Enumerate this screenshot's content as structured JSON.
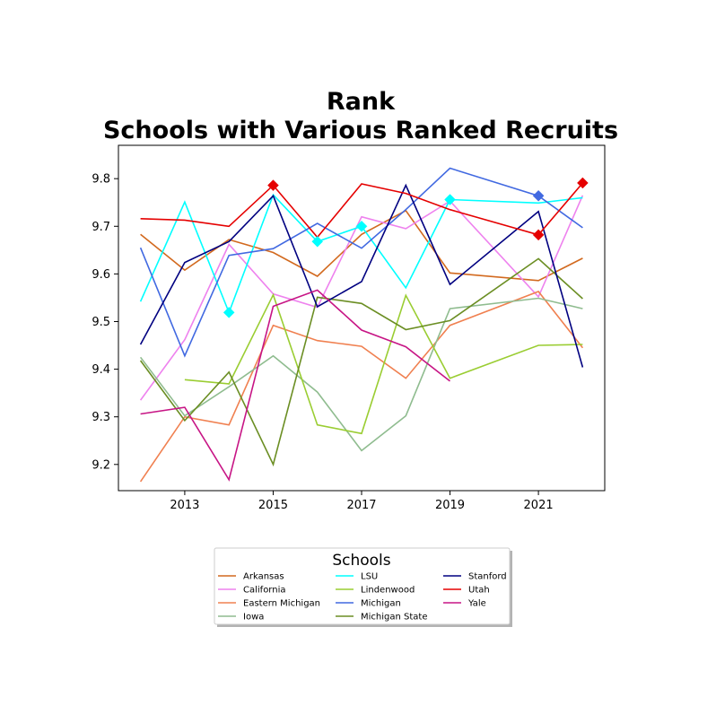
{
  "chart_data": {
    "type": "line",
    "title_lines": [
      "Rank",
      "Schools with Various Ranked Recruits"
    ],
    "xlabel": "",
    "ylabel": "",
    "xlim": [
      2011.5,
      2022.5
    ],
    "ylim": [
      9.145,
      9.87
    ],
    "xticks": [
      2013,
      2015,
      2017,
      2019,
      2021
    ],
    "yticks": [
      9.2,
      9.3,
      9.4,
      9.5,
      9.6,
      9.7,
      9.8
    ],
    "ytick_labels": [
      "9.2",
      "9.3",
      "9.4",
      "9.5",
      "9.6",
      "9.7",
      "9.8"
    ],
    "grid": false,
    "legend": {
      "title": "Schools",
      "placement": "bottom-center",
      "columns": 3
    },
    "series": [
      {
        "name": "Arkansas",
        "color": "#D2691E",
        "points": [
          [
            2012,
            9.683
          ],
          [
            2013,
            9.608
          ],
          [
            2014,
            9.672
          ],
          [
            2015,
            9.645
          ],
          [
            2016,
            9.595
          ],
          [
            2017,
            9.683
          ],
          [
            2018,
            9.733
          ],
          [
            2019,
            9.602
          ],
          [
            2021,
            9.586
          ],
          [
            2022,
            9.633
          ]
        ],
        "markers": []
      },
      {
        "name": "California",
        "color": "#EE82EE",
        "points": [
          [
            2012,
            9.335
          ],
          [
            2013,
            9.462
          ],
          [
            2014,
            9.662
          ],
          [
            2015,
            9.558
          ],
          [
            2016,
            9.53
          ],
          [
            2017,
            9.72
          ],
          [
            2018,
            9.695
          ],
          [
            2019,
            9.753
          ],
          [
            2021,
            9.552
          ],
          [
            2022,
            9.765
          ]
        ],
        "markers": []
      },
      {
        "name": "Eastern Michigan",
        "color": "#F08050",
        "points": [
          [
            2012,
            9.164
          ],
          [
            2013,
            9.3
          ],
          [
            2014,
            9.283
          ],
          [
            2015,
            9.492
          ],
          [
            2016,
            9.46
          ],
          [
            2017,
            9.448
          ],
          [
            2018,
            9.381
          ],
          [
            2019,
            9.492
          ],
          [
            2021,
            9.563
          ],
          [
            2022,
            9.445
          ]
        ],
        "markers": []
      },
      {
        "name": "Iowa",
        "color": "#8FBC8F",
        "points": [
          [
            2012,
            9.425
          ],
          [
            2013,
            9.302
          ],
          [
            2014,
            9.363
          ],
          [
            2015,
            9.428
          ],
          [
            2016,
            9.352
          ],
          [
            2017,
            9.229
          ],
          [
            2018,
            9.302
          ],
          [
            2019,
            9.527
          ],
          [
            2021,
            9.549
          ],
          [
            2022,
            9.527
          ]
        ],
        "markers": []
      },
      {
        "name": "LSU",
        "color": "#00FFFF",
        "points": [
          [
            2012,
            9.542
          ],
          [
            2013,
            9.751
          ],
          [
            2014,
            9.519
          ],
          [
            2015,
            9.766
          ],
          [
            2016,
            9.668
          ],
          [
            2017,
            9.7
          ],
          [
            2018,
            9.571
          ],
          [
            2019,
            9.756
          ],
          [
            2021,
            9.749
          ],
          [
            2022,
            9.76
          ]
        ],
        "markers": [
          2014,
          2016,
          2017,
          2019
        ]
      },
      {
        "name": "Lindenwood",
        "color": "#9ACD32",
        "points": [
          [
            2013,
            9.378
          ],
          [
            2014,
            9.369
          ],
          [
            2015,
            9.556
          ],
          [
            2016,
            9.283
          ],
          [
            2017,
            9.265
          ],
          [
            2018,
            9.555
          ],
          [
            2019,
            9.381
          ],
          [
            2021,
            9.45
          ],
          [
            2022,
            9.452
          ]
        ],
        "markers": []
      },
      {
        "name": "Michigan",
        "color": "#4169E1",
        "points": [
          [
            2012,
            9.655
          ],
          [
            2013,
            9.428
          ],
          [
            2014,
            9.639
          ],
          [
            2015,
            9.653
          ],
          [
            2016,
            9.706
          ],
          [
            2017,
            9.654
          ],
          [
            2018,
            9.735
          ],
          [
            2019,
            9.822
          ],
          [
            2021,
            9.764
          ],
          [
            2022,
            9.697
          ]
        ],
        "markers": [
          2021
        ]
      },
      {
        "name": "Michigan State",
        "color": "#6B8E23",
        "points": [
          [
            2012,
            9.418
          ],
          [
            2013,
            9.292
          ],
          [
            2014,
            9.394
          ],
          [
            2015,
            9.2
          ],
          [
            2016,
            9.551
          ],
          [
            2017,
            9.538
          ],
          [
            2018,
            9.483
          ],
          [
            2019,
            9.502
          ],
          [
            2021,
            9.632
          ],
          [
            2022,
            9.548
          ]
        ],
        "markers": []
      },
      {
        "name": "Stanford",
        "color": "#000080",
        "points": [
          [
            2012,
            9.452
          ],
          [
            2013,
            9.624
          ],
          [
            2014,
            9.668
          ],
          [
            2015,
            9.764
          ],
          [
            2016,
            9.531
          ],
          [
            2017,
            9.584
          ],
          [
            2018,
            9.786
          ],
          [
            2019,
            9.578
          ],
          [
            2021,
            9.731
          ],
          [
            2022,
            9.404
          ]
        ],
        "markers": []
      },
      {
        "name": "Utah",
        "color": "#E50000",
        "points": [
          [
            2012,
            9.716
          ],
          [
            2013,
            9.713
          ],
          [
            2014,
            9.7
          ],
          [
            2015,
            9.786
          ],
          [
            2016,
            9.677
          ],
          [
            2017,
            9.789
          ],
          [
            2018,
            9.769
          ],
          [
            2019,
            9.735
          ],
          [
            2021,
            9.682
          ],
          [
            2022,
            9.791
          ]
        ],
        "markers": [
          2015,
          2021,
          2022
        ]
      },
      {
        "name": "Yale",
        "color": "#C71585",
        "points": [
          [
            2012,
            9.306
          ],
          [
            2013,
            9.32
          ],
          [
            2014,
            9.168
          ],
          [
            2015,
            9.532
          ],
          [
            2016,
            9.566
          ],
          [
            2017,
            9.482
          ],
          [
            2018,
            9.447
          ],
          [
            2019,
            9.375
          ]
        ],
        "markers": []
      }
    ]
  }
}
